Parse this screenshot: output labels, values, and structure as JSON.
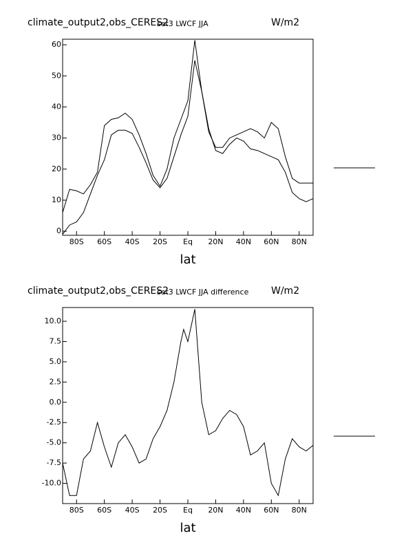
{
  "chart_data": [
    {
      "type": "line",
      "title": "climate_output2,obs_CERES2",
      "subtitle": "set3 LWCF JJA",
      "units": "W/m2",
      "x_label": "lat",
      "xlim": [
        -90,
        90
      ],
      "xticks": [
        {
          "value": -80,
          "label": "80S"
        },
        {
          "value": -60,
          "label": "60S"
        },
        {
          "value": -40,
          "label": "40S"
        },
        {
          "value": -20,
          "label": "20S"
        },
        {
          "value": 0,
          "label": "Eq"
        },
        {
          "value": 20,
          "label": "20N"
        },
        {
          "value": 40,
          "label": "40N"
        },
        {
          "value": 60,
          "label": "60N"
        },
        {
          "value": 80,
          "label": "80N"
        }
      ],
      "ylim": [
        -1.3,
        61.8
      ],
      "yticks": [
        0,
        10,
        20,
        30,
        40,
        50,
        60
      ],
      "x": [
        -90,
        -85,
        -80,
        -75,
        -70,
        -65,
        -60,
        -55,
        -50,
        -45,
        -40,
        -35,
        -30,
        -25,
        -20,
        -15,
        -10,
        -5,
        0,
        5,
        10,
        15,
        20,
        25,
        30,
        35,
        40,
        45,
        50,
        55,
        60,
        65,
        70,
        75,
        80,
        85,
        90
      ],
      "series": [
        {
          "color": "#000000",
          "values": [
            6,
            13.5,
            13,
            12,
            15,
            19,
            34,
            36,
            36.5,
            38,
            36,
            31,
            25,
            18,
            14.5,
            20,
            30,
            36,
            42,
            61.5,
            45,
            32,
            27,
            27,
            30,
            31,
            32,
            33,
            32,
            30,
            35,
            33,
            24,
            17,
            15.5,
            15.5,
            15.5
          ]
        },
        {
          "color": "#000000",
          "values": [
            -1,
            2,
            3,
            6,
            12,
            18,
            23,
            31,
            32.5,
            32.5,
            31.5,
            27,
            22,
            16.5,
            14,
            17,
            24,
            31,
            37,
            55,
            45,
            33,
            26,
            25,
            28,
            30,
            29,
            26.5,
            26,
            25,
            24,
            23,
            19,
            12.5,
            10.5,
            9.5,
            10.5
          ]
        }
      ]
    },
    {
      "type": "line",
      "title": "climate_output2,obs_CERES2",
      "subtitle": "set3 LWCF JJA difference",
      "units": "W/m2",
      "x_label": "lat",
      "xlim": [
        -90,
        90
      ],
      "xticks": [
        {
          "value": -80,
          "label": "80S"
        },
        {
          "value": -60,
          "label": "60S"
        },
        {
          "value": -40,
          "label": "40S"
        },
        {
          "value": -20,
          "label": "20S"
        },
        {
          "value": 0,
          "label": "Eq"
        },
        {
          "value": 20,
          "label": "20N"
        },
        {
          "value": 40,
          "label": "40N"
        },
        {
          "value": 60,
          "label": "60N"
        },
        {
          "value": 80,
          "label": "80N"
        }
      ],
      "ylim": [
        -12.5,
        11.7
      ],
      "yticks": [
        {
          "value": 10,
          "label": "10.0"
        },
        7.5,
        {
          "value": 5,
          "label": "5.0"
        },
        2.5,
        {
          "value": 0,
          "label": "0.0"
        },
        -2.5,
        {
          "value": -5,
          "label": "-5.0"
        },
        -7.5,
        {
          "value": -10,
          "label": "-10.0"
        }
      ],
      "x": [
        -90,
        -85,
        -80,
        -75,
        -70,
        -65,
        -60,
        -55,
        -50,
        -45,
        -40,
        -35,
        -30,
        -25,
        -20,
        -15,
        -10,
        -5,
        -3,
        0,
        5,
        10,
        15,
        20,
        25,
        30,
        35,
        40,
        45,
        50,
        55,
        60,
        65,
        70,
        75,
        80,
        85,
        90
      ],
      "series": [
        {
          "color": "#000000",
          "values": [
            -7.5,
            -11.5,
            -11.5,
            -7,
            -6,
            -2.5,
            -5.5,
            -8,
            -5,
            -4,
            -5.5,
            -7.5,
            -7,
            -4.5,
            -3,
            -1,
            2.5,
            7.5,
            9,
            7.5,
            11.5,
            0,
            -4,
            -3.5,
            -2,
            -1,
            -1.5,
            -3,
            -6.5,
            -6,
            -5,
            -10,
            -11.5,
            -7,
            -4.5,
            -5.5,
            -6,
            -5.3
          ]
        }
      ]
    }
  ]
}
